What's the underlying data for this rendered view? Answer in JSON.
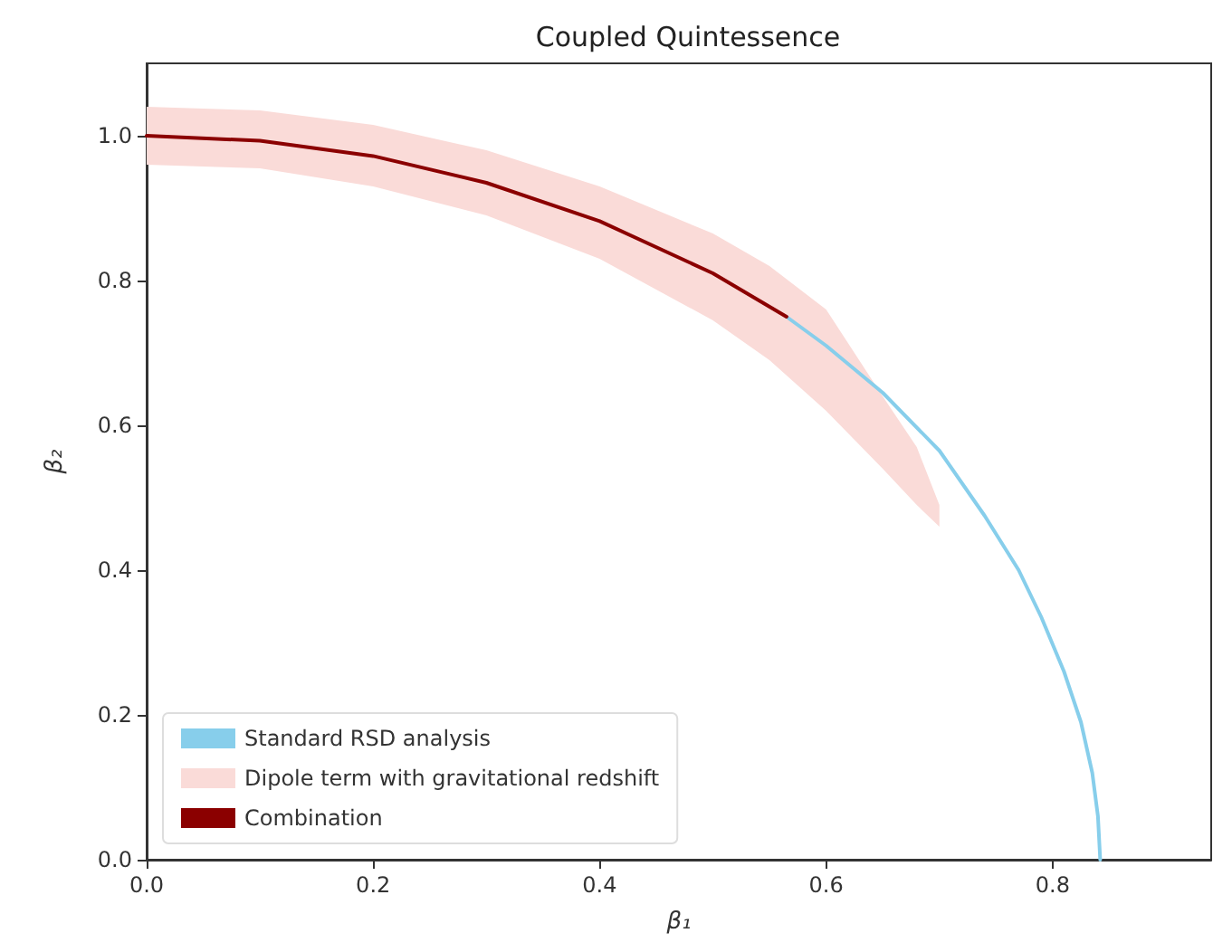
{
  "chart_data": {
    "type": "line",
    "title": "Coupled Quintessence",
    "xlabel": "β₁",
    "ylabel": "β₂",
    "xlim": [
      0,
      0.94
    ],
    "ylim": [
      0,
      1.1
    ],
    "xticks": [
      {
        "value": 0,
        "label": "0.0"
      },
      {
        "value": 0.2,
        "label": "0.2"
      },
      {
        "value": 0.4,
        "label": "0.4"
      },
      {
        "value": 0.6,
        "label": "0.6"
      },
      {
        "value": 0.8,
        "label": "0.8"
      }
    ],
    "yticks": [
      {
        "value": 0,
        "label": "0.0"
      },
      {
        "value": 0.2,
        "label": "0.2"
      },
      {
        "value": 0.4,
        "label": "0.4"
      },
      {
        "value": 0.6,
        "label": "0.6"
      },
      {
        "value": 0.8,
        "label": "0.8"
      },
      {
        "value": 1,
        "label": "1.0"
      }
    ],
    "grid": false,
    "legend": "bottom left",
    "marker": "none",
    "line_style": "solid",
    "series": [
      {
        "name": "Standard RSD analysis",
        "color": "#87ceeb",
        "x": [
          0.565,
          0.6,
          0.65,
          0.7,
          0.74,
          0.77,
          0.79,
          0.81,
          0.825,
          0.835,
          0.84,
          0.842
        ],
        "values": [
          0.75,
          0.71,
          0.645,
          0.565,
          0.475,
          0.4,
          0.335,
          0.26,
          0.19,
          0.12,
          0.06,
          0.0
        ]
      },
      {
        "name": "Dipole term with gravitational redshift",
        "color": "#fadbd8",
        "x": [
          0,
          0.1,
          0.2,
          0.3,
          0.4,
          0.5,
          0.55,
          0.6,
          0.65,
          0.68,
          0.7
        ],
        "values": [
          null,
          null,
          null,
          null,
          null,
          null,
          null,
          null,
          null,
          null,
          null
        ],
        "lower": [
          0.96,
          0.955,
          0.93,
          0.89,
          0.83,
          0.745,
          0.69,
          0.62,
          0.54,
          0.49,
          0.46
        ],
        "upper": [
          1.04,
          1.035,
          1.015,
          0.98,
          0.93,
          0.865,
          0.82,
          0.76,
          0.64,
          0.57,
          0.49
        ]
      },
      {
        "name": "Combination",
        "color": "#8b0000",
        "x": [
          0,
          0.1,
          0.2,
          0.3,
          0.4,
          0.5,
          0.565
        ],
        "values": [
          1.0,
          0.993,
          0.972,
          0.935,
          0.882,
          0.81,
          0.75
        ]
      }
    ]
  }
}
